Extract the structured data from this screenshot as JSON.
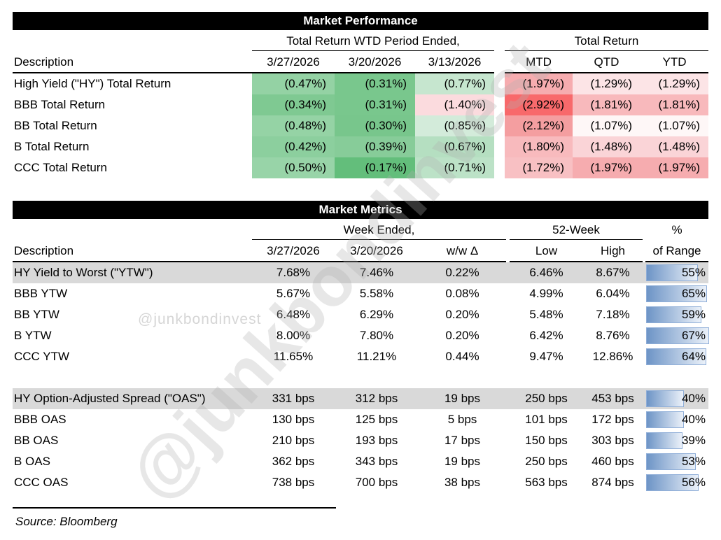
{
  "source_note": "Source: Bloomberg",
  "watermarks": {
    "small": "@junkbondinvest",
    "large": "@junkbondinvest"
  },
  "colors": {
    "header_bar_bg": "#000000",
    "header_bar_text": "#FFFFFF",
    "highlight_row_bg": "#D9D9D9",
    "heat_green_max": "#63BE7B",
    "heat_mid": "#FFFFFF",
    "heat_red_max": "#F8696B",
    "bar_fill_start": "#6D94C6",
    "bar_fill_end": "#EBF1F9",
    "bar_border": "#8FAED8"
  },
  "chart_data": [
    {
      "type": "table",
      "title": "Market Performance",
      "description_header": "Description",
      "column_groups": [
        {
          "label": "Total Return WTD Period Ended,",
          "columns": [
            "3/27/2026",
            "3/20/2026",
            "3/13/2026"
          ]
        },
        {
          "label": "Total Return",
          "columns": [
            "MTD",
            "QTD",
            "YTD"
          ]
        }
      ],
      "rows": [
        {
          "label": "High Yield (\"HY\") Total Return",
          "wtd": [
            {
              "value": "(0.47%)",
              "bg": "#94D2A4"
            },
            {
              "value": "(0.31%)",
              "bg": "#79C78D"
            },
            {
              "value": "(0.77%)",
              "bg": "#C6E6CF"
            }
          ],
          "total": [
            {
              "value": "(1.97%)",
              "bg": "#F6ACAF"
            },
            {
              "value": "(1.29%)",
              "bg": "#FCE4E6"
            },
            {
              "value": "(1.29%)",
              "bg": "#FCE4E6"
            }
          ]
        },
        {
          "label": "BBB Total Return",
          "wtd": [
            {
              "value": "(0.34%)",
              "bg": "#7FC992"
            },
            {
              "value": "(0.31%)",
              "bg": "#79C78D"
            },
            {
              "value": "(1.40%)",
              "bg": "#FBDBDE"
            }
          ],
          "total": [
            {
              "value": "(2.92%)",
              "bg": "#F8696B"
            },
            {
              "value": "(1.81%)",
              "bg": "#F8B9BC"
            },
            {
              "value": "(1.81%)",
              "bg": "#F8B9BC"
            }
          ]
        },
        {
          "label": "BB Total Return",
          "wtd": [
            {
              "value": "(0.48%)",
              "bg": "#95D3A5"
            },
            {
              "value": "(0.30%)",
              "bg": "#78C68C"
            },
            {
              "value": "(0.85%)",
              "bg": "#D3EBDA"
            }
          ],
          "total": [
            {
              "value": "(2.12%)",
              "bg": "#F49EA0"
            },
            {
              "value": "(1.07%)",
              "bg": "#FEF7F7"
            },
            {
              "value": "(1.07%)",
              "bg": "#FEF7F7"
            }
          ]
        },
        {
          "label": "B Total Return",
          "wtd": [
            {
              "value": "(0.42%)",
              "bg": "#8CCF9E"
            },
            {
              "value": "(0.39%)",
              "bg": "#87CC99"
            },
            {
              "value": "(0.67%)",
              "bg": "#B5DFC1"
            }
          ],
          "total": [
            {
              "value": "(1.80%)",
              "bg": "#F8BABD"
            },
            {
              "value": "(1.48%)",
              "bg": "#FAD4D7"
            },
            {
              "value": "(1.48%)",
              "bg": "#FAD4D7"
            }
          ]
        },
        {
          "label": "CCC Total Return",
          "wtd": [
            {
              "value": "(0.50%)",
              "bg": "#98D4A8"
            },
            {
              "value": "(0.17%)",
              "bg": "#63BE7B"
            },
            {
              "value": "(0.71%)",
              "bg": "#BCE2C7"
            }
          ],
          "total": [
            {
              "value": "(1.72%)",
              "bg": "#F8C0C3"
            },
            {
              "value": "(1.97%)",
              "bg": "#F6ACAF"
            },
            {
              "value": "(1.97%)",
              "bg": "#F6ACAF"
            }
          ]
        }
      ]
    },
    {
      "type": "table",
      "title": "Market Metrics",
      "description_header": "Description",
      "column_groups": [
        {
          "label": "Week Ended,",
          "columns": [
            "3/27/2026",
            "3/20/2026",
            "w/w Δ"
          ]
        },
        {
          "label": "52-Week",
          "columns": [
            "Low",
            "High"
          ]
        },
        {
          "label_line1": "%",
          "label_line2": "of Range"
        }
      ],
      "sections": [
        {
          "rows": [
            {
              "label": "HY Yield to Worst (\"YTW\")",
              "highlight": true,
              "week": [
                "7.68%",
                "7.46%",
                "0.22%"
              ],
              "low_high": [
                "6.46%",
                "8.67%"
              ],
              "range_pct": 55
            },
            {
              "label": "BBB YTW",
              "highlight": false,
              "week": [
                "5.67%",
                "5.58%",
                "0.08%"
              ],
              "low_high": [
                "4.99%",
                "6.04%"
              ],
              "range_pct": 65
            },
            {
              "label": "BB YTW",
              "highlight": false,
              "week": [
                "6.48%",
                "6.29%",
                "0.20%"
              ],
              "low_high": [
                "5.48%",
                "7.18%"
              ],
              "range_pct": 59
            },
            {
              "label": "B YTW",
              "highlight": false,
              "week": [
                "8.00%",
                "7.80%",
                "0.20%"
              ],
              "low_high": [
                "6.42%",
                "8.76%"
              ],
              "range_pct": 67
            },
            {
              "label": "CCC YTW",
              "highlight": false,
              "week": [
                "11.65%",
                "11.21%",
                "0.44%"
              ],
              "low_high": [
                "9.47%",
                "12.86%"
              ],
              "range_pct": 64
            }
          ]
        },
        {
          "rows": [
            {
              "label": "HY Option-Adjusted Spread (\"OAS\")",
              "highlight": true,
              "week": [
                "331 bps",
                "312 bps",
                "19 bps"
              ],
              "low_high": [
                "250 bps",
                "453 bps"
              ],
              "range_pct": 40
            },
            {
              "label": "BBB OAS",
              "highlight": false,
              "week": [
                "130 bps",
                "125 bps",
                "5 bps"
              ],
              "low_high": [
                "101 bps",
                "172 bps"
              ],
              "range_pct": 40
            },
            {
              "label": "BB OAS",
              "highlight": false,
              "week": [
                "210 bps",
                "193 bps",
                "17 bps"
              ],
              "low_high": [
                "150 bps",
                "303 bps"
              ],
              "range_pct": 39
            },
            {
              "label": "B OAS",
              "highlight": false,
              "week": [
                "362 bps",
                "343 bps",
                "19 bps"
              ],
              "low_high": [
                "250 bps",
                "460 bps"
              ],
              "range_pct": 53
            },
            {
              "label": "CCC OAS",
              "highlight": false,
              "week": [
                "738 bps",
                "700 bps",
                "38 bps"
              ],
              "low_high": [
                "563 bps",
                "874 bps"
              ],
              "range_pct": 56
            }
          ]
        }
      ]
    }
  ]
}
